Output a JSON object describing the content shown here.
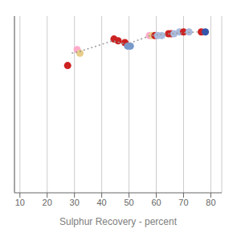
{
  "chart_data": {
    "type": "scatter",
    "xlabel": "Sulphur Recovery - percent",
    "xlim": [
      8,
      84
    ],
    "ylim": [
      0,
      100
    ],
    "xticks": [
      10,
      20,
      30,
      40,
      50,
      60,
      70,
      80
    ],
    "yticks": [],
    "tick_labels": "x",
    "grid": true,
    "series": [
      {
        "type": "scatter",
        "marker": "circle",
        "x": [
          27.5,
          31.0,
          32.0,
          44.5,
          46.0,
          48.5,
          49.5,
          50.5,
          57.5,
          58.5,
          59.5,
          60.5,
          62.0,
          64.5,
          65.5,
          66.5,
          68.5,
          70.0,
          72.0,
          76.5,
          78.0
        ],
        "values": [
          72,
          81,
          79,
          87,
          86,
          85,
          83,
          83,
          89,
          89,
          89,
          89,
          89,
          90,
          90,
          90,
          91,
          91,
          91,
          91,
          91
        ],
        "colors": [
          "#cc2222",
          "#ffaacc",
          "#e8cc88",
          "#cc2222",
          "#cc2222",
          "#cc2222",
          "#7799cc",
          "#7799cc",
          "#ffaacc",
          "#e8cc88",
          "#cc2222",
          "#aabbdd",
          "#aabbdd",
          "#cc2222",
          "#cc2222",
          "#aabbdd",
          "#aabbdd",
          "#cc2222",
          "#aabbdd",
          "#cc2222",
          "#3355aa"
        ]
      },
      {
        "type": "line",
        "line_style": "dotted",
        "color": "#999999",
        "x": [
          29,
          32,
          44,
          49,
          58,
          65,
          75
        ],
        "values": [
          79,
          80,
          86,
          84,
          89,
          90,
          91
        ]
      }
    ]
  }
}
